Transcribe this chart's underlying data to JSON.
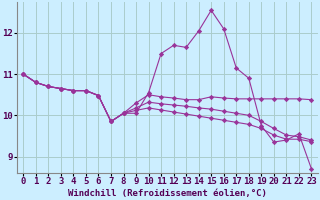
{
  "xlabel": "Windchill (Refroidissement éolien,°C)",
  "xlim": [
    -0.5,
    23.5
  ],
  "ylim": [
    8.6,
    12.75
  ],
  "yticks": [
    9,
    10,
    11,
    12
  ],
  "xticks": [
    0,
    1,
    2,
    3,
    4,
    5,
    6,
    7,
    8,
    9,
    10,
    11,
    12,
    13,
    14,
    15,
    16,
    17,
    18,
    19,
    20,
    21,
    22,
    23
  ],
  "bg_color": "#cceeff",
  "line_color": "#993399",
  "grid_color": "#aacccc",
  "lines": [
    [
      11.0,
      10.8,
      10.7,
      10.65,
      10.6,
      10.6,
      10.48,
      9.85,
      10.05,
      10.05,
      10.55,
      11.5,
      11.7,
      11.65,
      12.05,
      12.55,
      12.1,
      11.15,
      10.9,
      9.75,
      9.35,
      9.4,
      9.55,
      8.7
    ],
    [
      11.0,
      10.8,
      10.7,
      10.65,
      10.6,
      10.6,
      10.48,
      9.85,
      10.05,
      10.3,
      10.5,
      10.45,
      10.42,
      10.38,
      10.38,
      10.45,
      10.42,
      10.4,
      10.4,
      10.4,
      10.4,
      10.4,
      10.4,
      10.38
    ],
    [
      11.0,
      10.8,
      10.7,
      10.65,
      10.6,
      10.6,
      10.48,
      9.85,
      10.05,
      10.18,
      10.32,
      10.28,
      10.25,
      10.22,
      10.18,
      10.15,
      10.1,
      10.05,
      10.0,
      9.85,
      9.68,
      9.52,
      9.48,
      9.4
    ],
    [
      11.0,
      10.8,
      10.7,
      10.65,
      10.6,
      10.6,
      10.48,
      9.85,
      10.05,
      10.12,
      10.18,
      10.13,
      10.08,
      10.03,
      9.98,
      9.93,
      9.88,
      9.83,
      9.78,
      9.68,
      9.52,
      9.42,
      9.42,
      9.36
    ]
  ],
  "marker": "D",
  "marker_size": 2.2,
  "linewidth": 0.8,
  "font_size_xlabel": 6.5,
  "font_size_ticks": 6.5
}
